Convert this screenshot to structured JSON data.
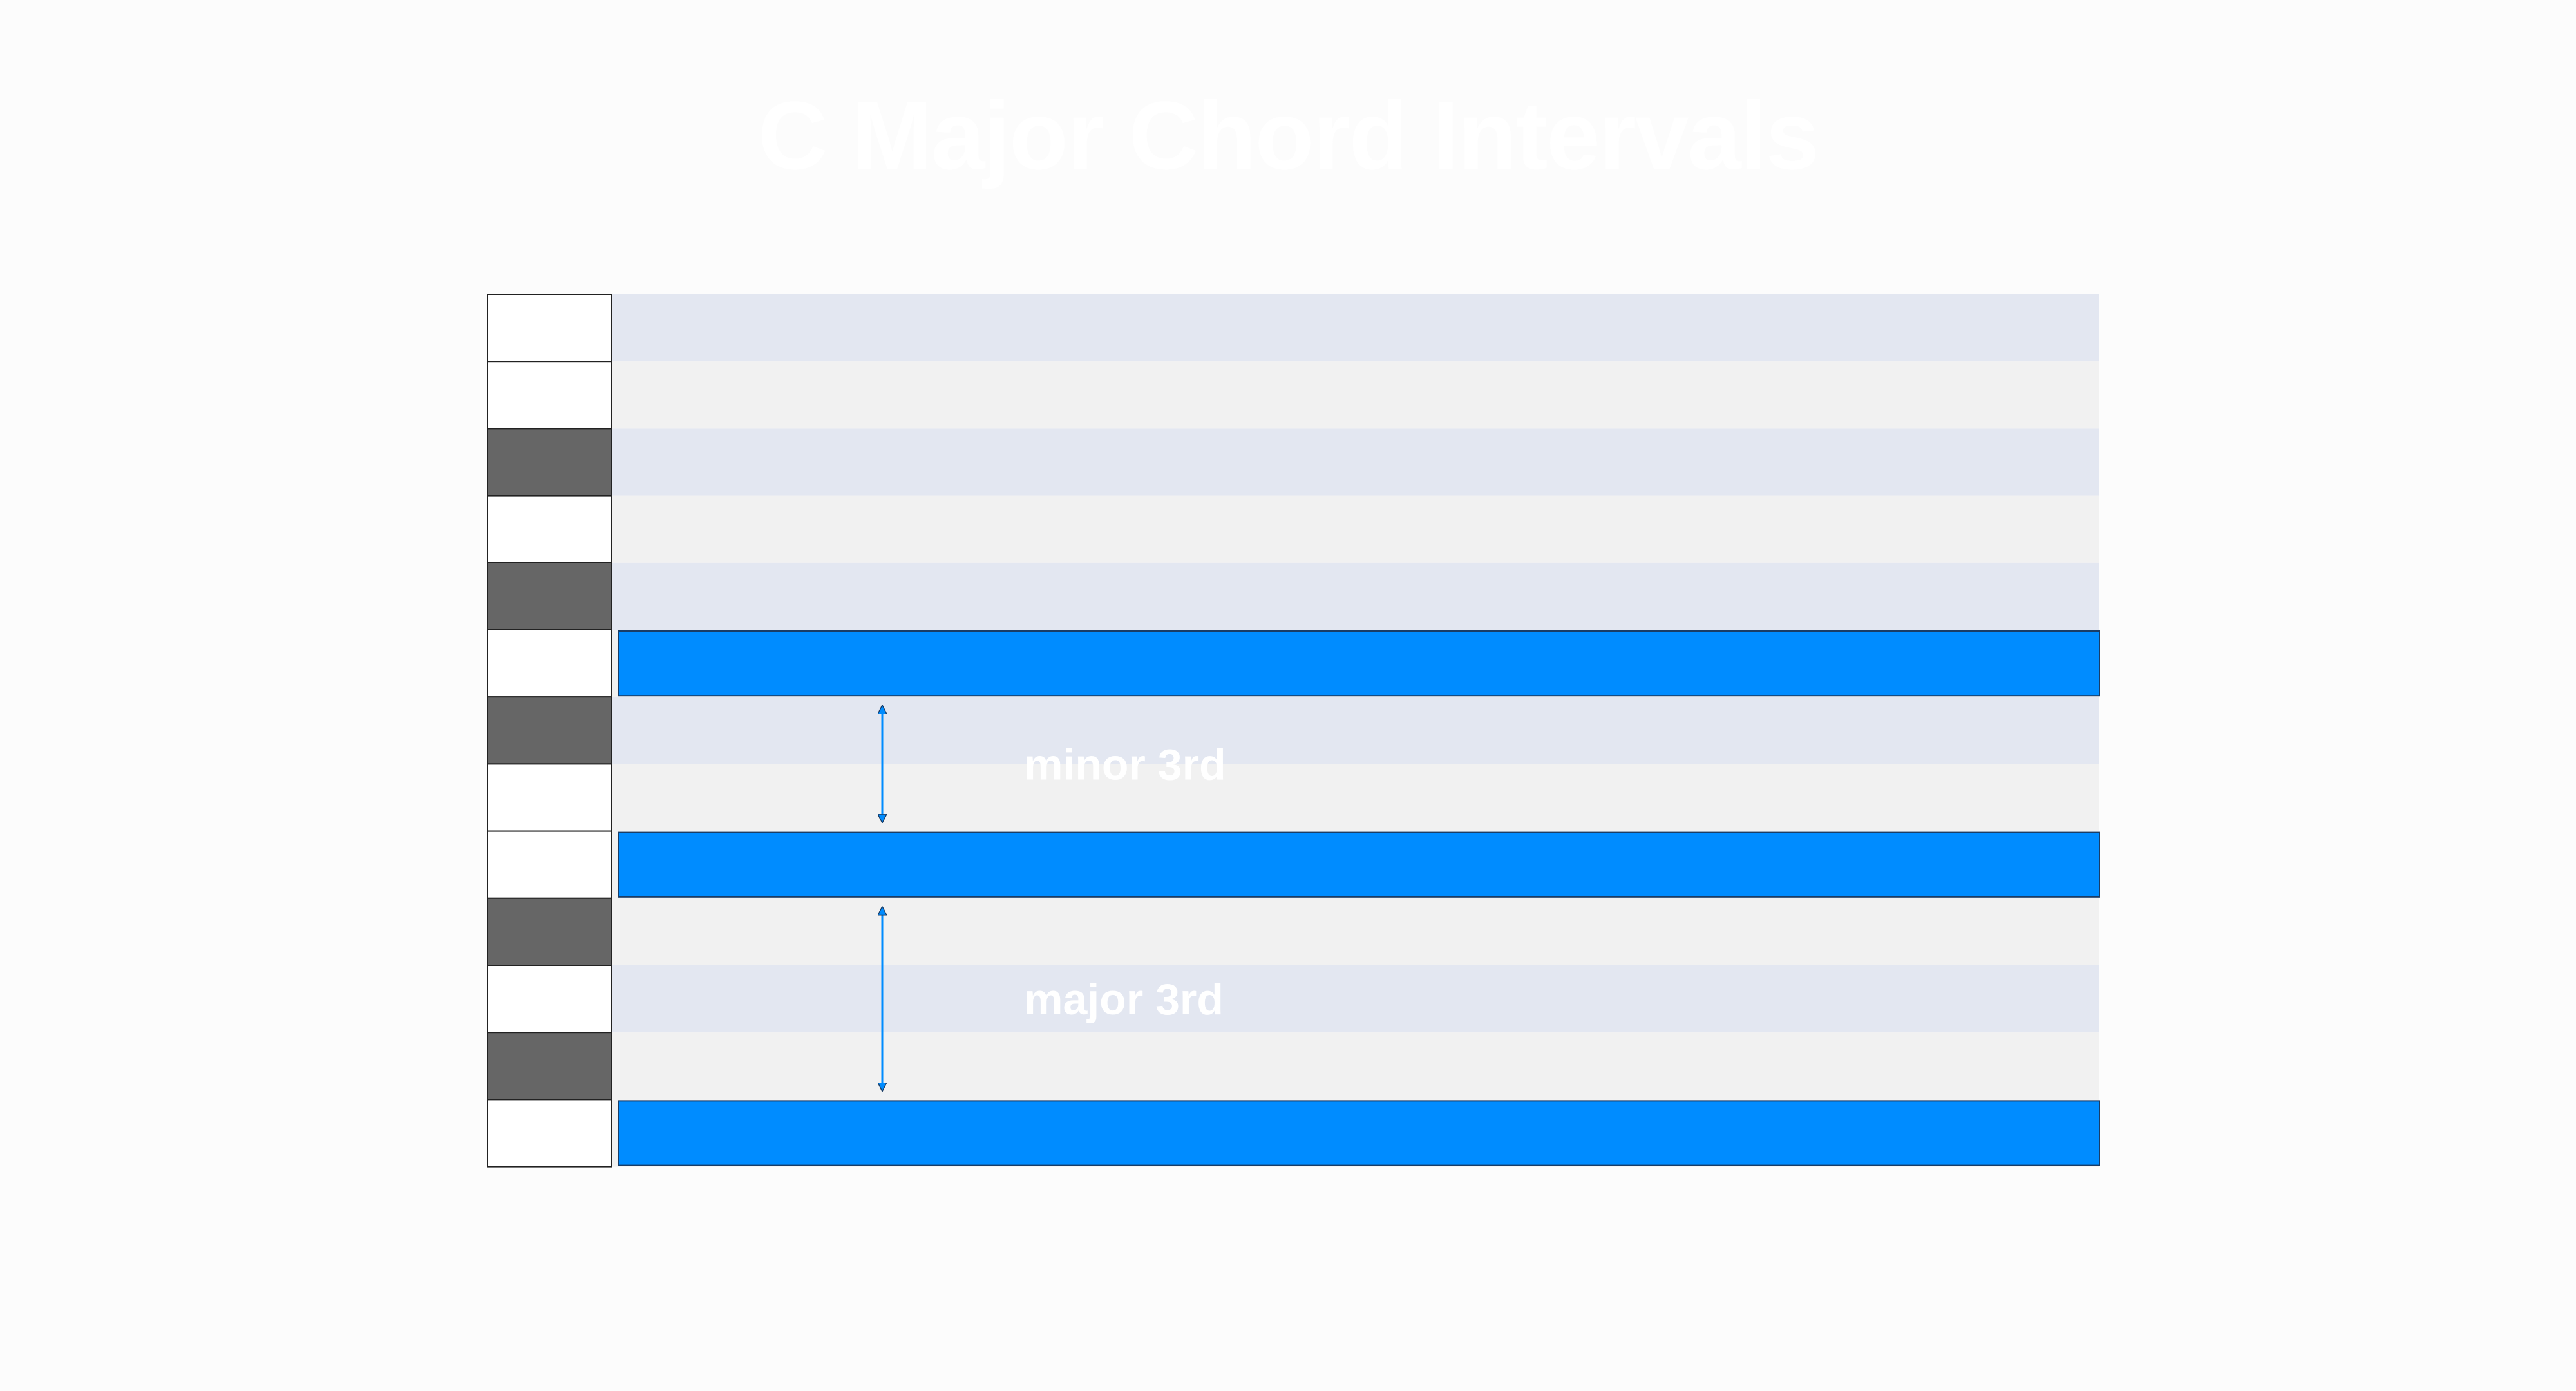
{
  "title": "C Major Chord Intervals",
  "colors": {
    "background": "#fcfcfc",
    "lane_a": "#e3e7f1",
    "lane_b": "#f1f1f1",
    "white_key": "#ffffff",
    "black_key": "#666666",
    "note": "#008cff",
    "arrow": "#008cff",
    "label": "#ffffff"
  },
  "keys": [
    {
      "type": "white",
      "lane": "a"
    },
    {
      "type": "white",
      "lane": "b"
    },
    {
      "type": "black",
      "lane": "a"
    },
    {
      "type": "white",
      "lane": "b"
    },
    {
      "type": "black",
      "lane": "a"
    },
    {
      "type": "white",
      "lane": "b",
      "note": true
    },
    {
      "type": "black",
      "lane": "a"
    },
    {
      "type": "white",
      "lane": "b"
    },
    {
      "type": "white",
      "lane": "b",
      "note": true
    },
    {
      "type": "black",
      "lane": "b"
    },
    {
      "type": "white",
      "lane": "a"
    },
    {
      "type": "black",
      "lane": "b"
    },
    {
      "type": "white",
      "lane": "b",
      "note": true
    }
  ],
  "intervals": [
    {
      "label": "minor 3rd",
      "from_row": 5,
      "to_row": 8
    },
    {
      "label": "major 3rd",
      "from_row": 8,
      "to_row": 12
    }
  ]
}
